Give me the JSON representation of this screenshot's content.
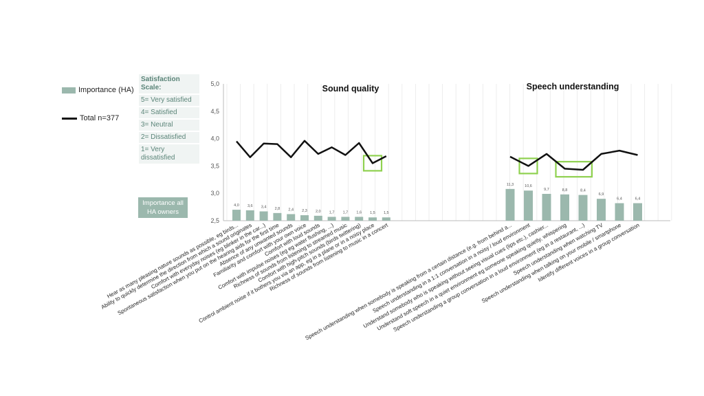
{
  "legend": {
    "bar_label": "Importance (HA)",
    "line_label": "Total n=377"
  },
  "scale": {
    "title": "Satisfaction Scale:",
    "items": [
      "5= Very satisfied",
      "4= Satisfied",
      "3= Neutral",
      "2= Dissatisfied",
      "1= Very dissatisfied"
    ]
  },
  "importance_box": "Importance all HA owners",
  "colors": {
    "bar": "#9bb8ad",
    "line": "#111111",
    "highlight": "#8fd14f",
    "grid": "#dddddd"
  },
  "chart_data": {
    "type": "bar+line",
    "ylim": [
      2.5,
      5.0
    ],
    "yticks": [
      "2,5",
      "3,0",
      "3,5",
      "4,0",
      "4,5",
      "5,0"
    ],
    "panel_titles": [
      "Sound quality",
      "Speech understanding"
    ],
    "categories": [
      "Hear as many pleasing nature sounds as possible, eg birds...",
      "Ability to quickly determine the direction from which a sound originates",
      "Comfort with everyday noises  (eg blinker in the car...)",
      "Spontaneous satisfaction when you put on the hearing aids for the first time",
      "Absence of any unwanted sounds",
      "Familiarity and comfort with your own voice",
      "Comfort with loud sounds",
      "Comfort with impulse noises (eg eg water flushing, ...)",
      "Richness of sounds from listening to  streamed music",
      "Comfort with high-pitch sounds (birds twittering)",
      "Control ambient noise if it bothers you via an app, eg in a plane or in a noisy place",
      "Richness of sounds from listening to music in a concert",
      "Speech understanding when somebody is speaking from a certain distance  (e.g. from behind a...",
      "Speech understanding in a 1:1 conversation in a noisy / loud environment",
      "Understand somebody who is speaking without seeing visual cues (lips etc.), cashier...",
      "Understand soft speech in a quiet environment eg someone speaking quietly, whispering",
      "Speech understanding a group conversation in a loud environment (eg in a restaurant, ...)",
      "Speech understanding when watching TV",
      "Speech understanding when talking on your mobile / smartphone",
      "Identify different voices in a group conversation"
    ],
    "series": [
      {
        "type": "bar",
        "name": "Importance (HA)",
        "values": [
          2.7,
          2.69,
          2.67,
          2.64,
          2.62,
          2.6,
          2.59,
          2.57,
          2.57,
          2.57,
          2.56,
          2.56,
          3.08,
          3.05,
          2.99,
          2.98,
          2.97,
          2.9,
          2.82,
          2.82
        ],
        "labels": [
          "4,0",
          "3,6",
          "3,4",
          "2,8",
          "2,4",
          "2,3",
          "2,0",
          "1,7",
          "1,7",
          "1,6",
          "1,5",
          "1,5",
          "11,3",
          "10,6",
          "9,7",
          "8,8",
          "8,4",
          "6,9",
          "6,4",
          "6,4"
        ]
      },
      {
        "type": "line",
        "name": "Total n=377",
        "values": [
          3.95,
          3.66,
          3.91,
          3.9,
          3.66,
          3.96,
          3.72,
          3.84,
          3.7,
          3.92,
          3.55,
          3.68,
          3.67,
          3.5,
          3.72,
          3.45,
          3.43,
          3.72,
          3.78,
          3.7
        ]
      }
    ],
    "highlights": [
      {
        "from": 10,
        "to": 10
      },
      {
        "from": 13,
        "to": 13
      },
      {
        "from": 15,
        "to": 16
      }
    ]
  }
}
